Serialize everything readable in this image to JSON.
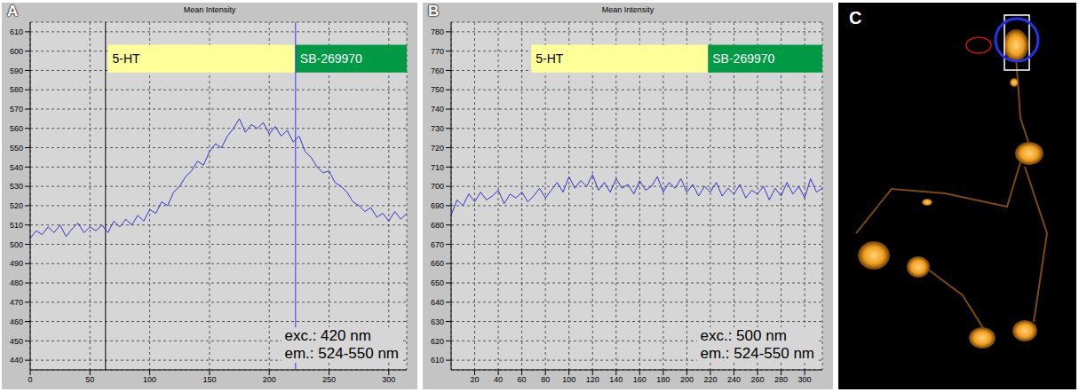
{
  "chart_data": [
    {
      "type": "line",
      "panel": "A",
      "title": "Mean Intensity",
      "color": "#3333cc",
      "grid": true,
      "x": [
        0,
        5,
        10,
        15,
        20,
        25,
        30,
        35,
        40,
        45,
        50,
        55,
        60,
        65,
        70,
        75,
        80,
        85,
        90,
        95,
        100,
        105,
        110,
        115,
        120,
        125,
        130,
        135,
        140,
        145,
        150,
        155,
        160,
        165,
        170,
        175,
        180,
        185,
        190,
        195,
        200,
        205,
        210,
        215,
        220,
        225,
        230,
        235,
        240,
        245,
        250,
        255,
        260,
        265,
        270,
        275,
        280,
        285,
        290,
        295,
        300,
        305,
        310,
        315
      ],
      "values": [
        503,
        507,
        505,
        509,
        506,
        510,
        504,
        508,
        511,
        506,
        509,
        507,
        510,
        506,
        512,
        509,
        513,
        510,
        515,
        512,
        518,
        516,
        522,
        520,
        527,
        530,
        535,
        538,
        543,
        541,
        548,
        552,
        550,
        556,
        560,
        565,
        558,
        562,
        560,
        563,
        557,
        561,
        556,
        559,
        553,
        556,
        548,
        545,
        540,
        537,
        538,
        532,
        530,
        527,
        522,
        520,
        517,
        519,
        514,
        516,
        512,
        517,
        513,
        516
      ],
      "xlim": [
        0,
        315
      ],
      "xticks": [
        0,
        50,
        100,
        150,
        200,
        250,
        300
      ],
      "ylim": [
        435,
        615
      ],
      "yticks": [
        440,
        450,
        460,
        470,
        480,
        490,
        500,
        510,
        520,
        530,
        540,
        550,
        560,
        570,
        580,
        590,
        600,
        610
      ],
      "annotations": [
        {
          "text": "5-HT",
          "x_start": 65,
          "x_end": 222,
          "color": "#ffff99",
          "text_color": "#000000"
        },
        {
          "text": "SB-269970",
          "x_start": 222,
          "x_end": 315,
          "color": "#009a44",
          "text_color": "#ffffff"
        }
      ],
      "vlines": [
        {
          "x": 63,
          "color": "#000000"
        },
        {
          "x": 222,
          "color": "#3333ff"
        }
      ],
      "notes": [
        "exc.: 420 nm",
        "em.: 524-550 nm"
      ]
    },
    {
      "type": "line",
      "panel": "B",
      "title": "Mean Intensity",
      "color": "#3333cc",
      "grid": true,
      "x": [
        0,
        5,
        10,
        15,
        20,
        25,
        30,
        35,
        40,
        45,
        50,
        55,
        60,
        65,
        70,
        75,
        80,
        85,
        90,
        95,
        100,
        105,
        110,
        115,
        120,
        125,
        130,
        135,
        140,
        145,
        150,
        155,
        160,
        165,
        170,
        175,
        180,
        185,
        190,
        195,
        200,
        205,
        210,
        215,
        220,
        225,
        230,
        235,
        240,
        245,
        250,
        255,
        260,
        265,
        270,
        275,
        280,
        285,
        290,
        295,
        300,
        305,
        310,
        315
      ],
      "values": [
        685,
        693,
        690,
        696,
        692,
        697,
        693,
        695,
        698,
        691,
        696,
        694,
        697,
        692,
        695,
        699,
        694,
        698,
        702,
        697,
        705,
        699,
        703,
        700,
        706,
        698,
        702,
        697,
        704,
        699,
        701,
        696,
        703,
        698,
        700,
        705,
        697,
        702,
        699,
        704,
        697,
        701,
        695,
        700,
        697,
        702,
        695,
        699,
        696,
        701,
        694,
        698,
        696,
        700,
        693,
        699,
        695,
        702,
        696,
        700,
        694,
        704,
        697,
        699
      ],
      "xlim": [
        0,
        315
      ],
      "xticks": [
        20,
        40,
        60,
        80,
        100,
        120,
        140,
        160,
        180,
        200,
        220,
        240,
        260,
        280,
        300
      ],
      "ylim": [
        605,
        785
      ],
      "yticks": [
        610,
        620,
        630,
        640,
        650,
        660,
        670,
        680,
        690,
        700,
        710,
        720,
        730,
        740,
        750,
        760,
        770,
        780
      ],
      "annotations": [
        {
          "text": "5-HT",
          "x_start": 68,
          "x_end": 218,
          "color": "#ffff99",
          "text_color": "#000000"
        },
        {
          "text": "SB-269970",
          "x_start": 218,
          "x_end": 315,
          "color": "#009a44",
          "text_color": "#ffffff"
        }
      ],
      "vlines": [],
      "notes": [
        "exc.: 500 nm",
        "em.: 524-550 nm"
      ]
    }
  ],
  "image_panel": {
    "panel": "C"
  }
}
